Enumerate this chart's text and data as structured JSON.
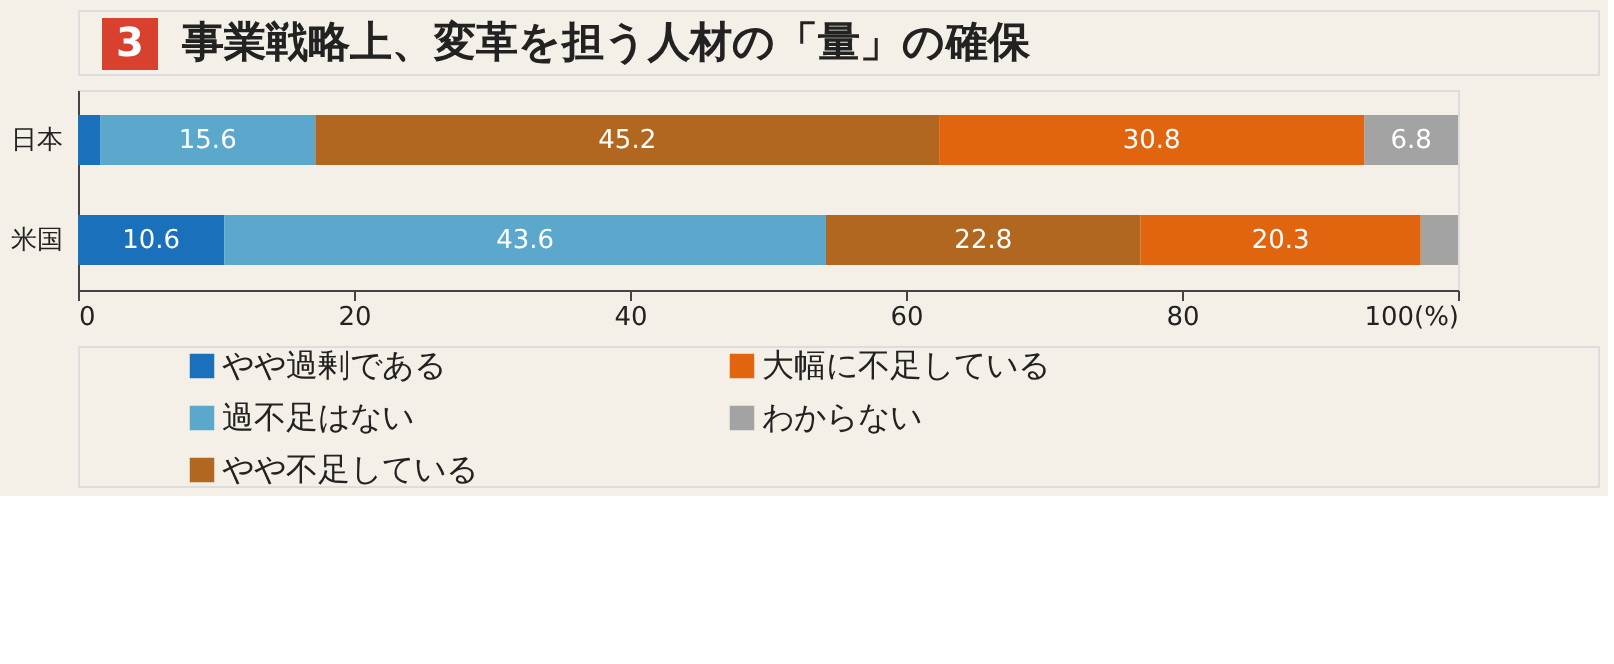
{
  "chart_data": {
    "type": "bar",
    "orientation": "horizontal",
    "stacked": true,
    "title": "事業戦略上、変革を担う人材の「量」の確保",
    "annotations": [
      "3"
    ],
    "categories": [
      "日本",
      "米国"
    ],
    "series": [
      {
        "name": "やや過剰である",
        "color": "#1a70bb",
        "values": [
          1.6,
          10.6
        ],
        "value_labels": [
          null,
          "10.6"
        ]
      },
      {
        "name": "過不足はない",
        "color": "#5ba8cc",
        "values": [
          15.6,
          43.6
        ],
        "value_labels": [
          "15.6",
          "43.6"
        ]
      },
      {
        "name": "やや不足している",
        "color": "#b1671f",
        "values": [
          45.2,
          22.8
        ],
        "value_labels": [
          "45.2",
          "22.8"
        ]
      },
      {
        "name": "大幅に不足している",
        "color": "#e1650f",
        "values": [
          30.8,
          20.3
        ],
        "value_labels": [
          "30.8",
          "20.3"
        ]
      },
      {
        "name": "わからない",
        "color": "#a3a3a3",
        "values": [
          6.8,
          2.7
        ],
        "value_labels": [
          "6.8",
          null
        ]
      }
    ],
    "xlim": [
      0,
      100
    ],
    "xticks": [
      0,
      20,
      40,
      60,
      80,
      {
        "value": 100,
        "label": "100(%)"
      }
    ],
    "grid": false,
    "legend": "bottom"
  }
}
